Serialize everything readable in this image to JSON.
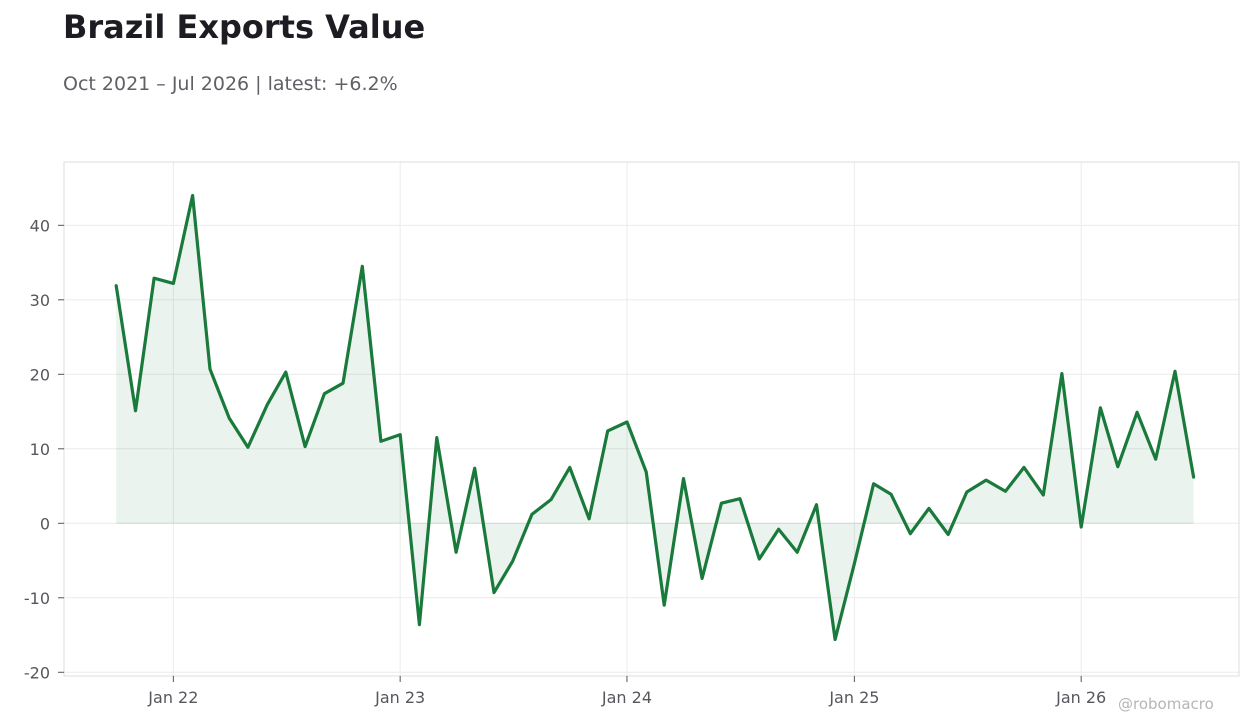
{
  "header": {
    "title": "Brazil Exports Value",
    "subtitle": "Oct 2021 – Jul 2026 | latest: +6.2%"
  },
  "watermark": "@robomacro",
  "colors": {
    "line": "#1a7a3c",
    "fill": "#1a7a3c",
    "grid": "#ececec",
    "axis_frame": "#dcdcdc",
    "text": "#55575c"
  },
  "chart_data": {
    "type": "line",
    "title": "Brazil Exports Value",
    "subtitle": "Oct 2021 – Jul 2026 | latest: +6.2%",
    "xlabel": "",
    "ylabel": "",
    "grid": true,
    "legend": "none",
    "ylim": [
      -20.5,
      48.5
    ],
    "xlim": [
      "2021-07-09",
      "2026-09-12"
    ],
    "x_ticks": [
      {
        "date": "2022-01-01",
        "label": "Jan 22"
      },
      {
        "date": "2023-01-01",
        "label": "Jan 23"
      },
      {
        "date": "2024-01-01",
        "label": "Jan 24"
      },
      {
        "date": "2025-01-01",
        "label": "Jan 25"
      },
      {
        "date": "2026-01-01",
        "label": "Jan 26"
      }
    ],
    "y_ticks": [
      {
        "value": -20,
        "label": "-20"
      },
      {
        "value": -10,
        "label": "-10"
      },
      {
        "value": 0,
        "label": "0"
      },
      {
        "value": 10,
        "label": "10"
      },
      {
        "value": 20,
        "label": "20"
      },
      {
        "value": 30,
        "label": "30"
      },
      {
        "value": 40,
        "label": "40"
      }
    ],
    "series": [
      {
        "x": [
          "2021-10",
          "2021-11",
          "2021-12",
          "2022-01",
          "2022-02",
          "2022-03",
          "2022-04",
          "2022-05",
          "2022-06",
          "2022-07",
          "2022-08",
          "2022-09",
          "2022-10",
          "2022-11",
          "2022-12",
          "2023-01",
          "2023-02",
          "2023-03",
          "2023-04",
          "2023-05",
          "2023-06",
          "2023-07",
          "2023-08",
          "2023-09",
          "2023-10",
          "2023-11",
          "2023-12",
          "2024-01",
          "2024-02",
          "2024-03",
          "2024-04",
          "2024-05",
          "2024-06",
          "2024-07",
          "2024-08",
          "2024-09",
          "2024-10",
          "2024-11",
          "2024-12",
          "2025-01",
          "2025-02",
          "2025-03",
          "2025-04",
          "2025-05",
          "2025-06",
          "2025-07",
          "2025-08",
          "2025-09",
          "2025-10",
          "2025-11",
          "2025-12",
          "2026-01",
          "2026-02",
          "2026-03",
          "2026-04",
          "2026-05",
          "2026-06",
          "2026-07"
        ],
        "values": [
          31.9,
          15.1,
          32.9,
          32.2,
          44.0,
          20.7,
          14.1,
          10.2,
          15.9,
          20.3,
          10.3,
          17.4,
          18.8,
          34.5,
          11.0,
          11.9,
          -13.6,
          11.5,
          -3.9,
          7.4,
          -9.3,
          -5.1,
          1.2,
          3.2,
          7.5,
          0.6,
          12.4,
          13.6,
          6.9,
          -11.0,
          6.0,
          -7.4,
          2.7,
          3.3,
          -4.8,
          -0.8,
          -3.9,
          2.5,
          -15.6,
          -5.4,
          5.3,
          3.9,
          -1.4,
          2.0,
          -1.5,
          4.2,
          5.8,
          4.3,
          7.5,
          3.8,
          20.1,
          -0.5,
          15.5,
          7.6,
          14.9,
          8.6,
          20.4,
          6.2
        ]
      }
    ]
  }
}
